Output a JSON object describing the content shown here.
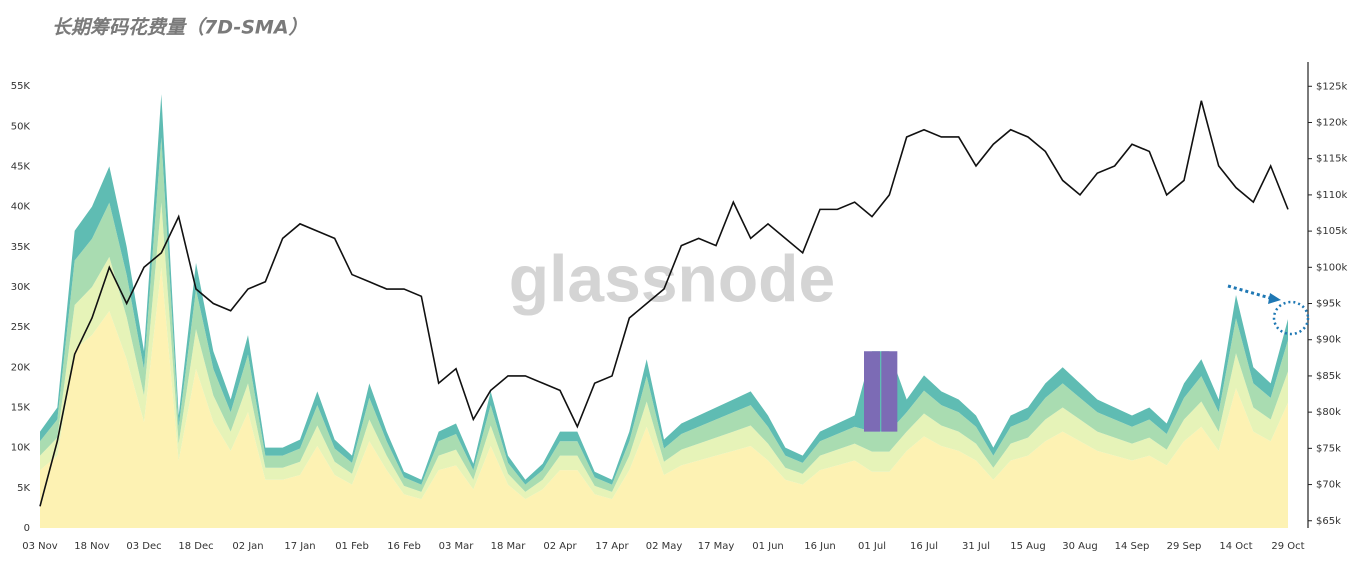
{
  "chart_data": {
    "type": "stacked_area_line",
    "title": "长期筹码花费量（7D-SMA）",
    "watermark": "glassnode",
    "categories": [
      "03 Nov",
      null,
      null,
      "18 Nov",
      null,
      null,
      "03 Dec",
      null,
      null,
      "18 Dec",
      null,
      null,
      "02 Jan",
      null,
      null,
      "17 Jan",
      null,
      null,
      "01 Feb",
      null,
      null,
      "16 Feb",
      null,
      null,
      "03 Mar",
      null,
      null,
      "18 Mar",
      null,
      null,
      "02 Apr",
      null,
      null,
      "17 Apr",
      null,
      null,
      "02 May",
      null,
      null,
      "17 May",
      null,
      null,
      "01 Jun",
      null,
      null,
      "16 Jun",
      null,
      null,
      "01 Jul",
      null,
      null,
      "16 Jul",
      null,
      null,
      "31 Jul",
      null,
      null,
      "15 Aug",
      null,
      null,
      "30 Aug",
      null,
      null,
      "14 Sep",
      null,
      null,
      "29 Sep",
      null,
      null,
      "14 Oct",
      null,
      null,
      "29 Oct"
    ],
    "series": [
      {
        "color": "#fdf2b3",
        "values": [
          7200,
          9000,
          22200,
          24000,
          27000,
          21000,
          13200,
          32400,
          8400,
          19800,
          13200,
          9600,
          14400,
          6000,
          6000,
          6600,
          10200,
          6600,
          5400,
          10800,
          7200,
          4200,
          3600,
          7200,
          7800,
          4800,
          10200,
          5400,
          3600,
          4800,
          7200,
          7200,
          4200,
          3600,
          7200,
          12600,
          6600,
          7800,
          8400,
          9000,
          9600,
          10200,
          8400,
          6000,
          5400,
          7200,
          7800,
          8400,
          7000,
          7000,
          9600,
          11400,
          10200,
          9600,
          8400,
          6000,
          8400,
          9000,
          10800,
          12000,
          10800,
          9600,
          9000,
          8400,
          9000,
          7800,
          10800,
          12600,
          9600,
          17400,
          12000,
          10800,
          15600
        ]
      },
      {
        "color": "#e6f3b8",
        "values": [
          1800,
          2250,
          5550,
          6000,
          6750,
          5250,
          3300,
          8100,
          2100,
          4950,
          3300,
          2400,
          3600,
          1500,
          1500,
          1650,
          2550,
          1650,
          1350,
          2700,
          1800,
          1050,
          900,
          1800,
          1950,
          1200,
          2550,
          1350,
          900,
          1200,
          1800,
          1800,
          1050,
          900,
          1800,
          3150,
          1650,
          1950,
          2100,
          2250,
          2400,
          2550,
          2100,
          1500,
          1350,
          1800,
          1950,
          2100,
          2500,
          2500,
          2400,
          2850,
          2550,
          2400,
          2100,
          1500,
          2100,
          2250,
          2700,
          3000,
          2700,
          2400,
          2250,
          2100,
          2250,
          1950,
          2700,
          3150,
          2400,
          4350,
          3000,
          2700,
          3900
        ]
      },
      {
        "color": "#a9dcb1",
        "values": [
          1800,
          2250,
          5550,
          6000,
          6750,
          5250,
          3300,
          8100,
          2100,
          4950,
          3300,
          2400,
          3600,
          1500,
          1500,
          1650,
          2550,
          1650,
          1350,
          2700,
          1800,
          1050,
          900,
          1800,
          1950,
          1200,
          2550,
          1350,
          900,
          1200,
          1800,
          1800,
          1050,
          900,
          1800,
          3150,
          1650,
          1950,
          2100,
          2250,
          2400,
          2550,
          2100,
          1500,
          1350,
          1800,
          1950,
          2100,
          2500,
          2500,
          2400,
          2850,
          2550,
          2400,
          2100,
          1500,
          2100,
          2250,
          2700,
          3000,
          2700,
          2400,
          2250,
          2100,
          2250,
          1950,
          2700,
          3150,
          2400,
          4350,
          3000,
          2700,
          3900
        ]
      },
      {
        "color": "#5fbcb3",
        "values": [
          1200,
          1500,
          3700,
          4000,
          4500,
          3500,
          2200,
          5400,
          1400,
          3300,
          2200,
          1600,
          2400,
          1000,
          1000,
          1100,
          1700,
          1100,
          900,
          1800,
          1200,
          700,
          600,
          1200,
          1300,
          800,
          1700,
          900,
          600,
          800,
          1200,
          1200,
          700,
          600,
          1200,
          2100,
          1100,
          1300,
          1400,
          1500,
          1600,
          1700,
          1400,
          1000,
          900,
          1200,
          1300,
          1400,
          10000,
          10000,
          1600,
          1900,
          1700,
          1600,
          1400,
          1000,
          1400,
          1500,
          1800,
          2000,
          1800,
          1600,
          1500,
          1400,
          1500,
          1300,
          1800,
          2100,
          1600,
          2900,
          2000,
          1800,
          2600
        ]
      },
      {
        "color": "#111111",
        "axis": "y2",
        "values": [
          67000,
          76000,
          88000,
          93000,
          100000,
          95000,
          100000,
          102000,
          107000,
          97000,
          95000,
          94000,
          97000,
          98000,
          104000,
          106000,
          105000,
          104000,
          99000,
          98000,
          97000,
          97000,
          96000,
          84000,
          86000,
          79000,
          83000,
          85000,
          85000,
          84000,
          83000,
          78000,
          84000,
          85000,
          93000,
          95000,
          97000,
          103000,
          104000,
          103000,
          109000,
          104000,
          106000,
          104000,
          102000,
          108000,
          108000,
          109000,
          107000,
          110000,
          118000,
          119000,
          118000,
          118000,
          114000,
          117000,
          119000,
          118000,
          116000,
          112000,
          110000,
          113000,
          114000,
          117000,
          116000,
          110000,
          112000,
          123000,
          114000,
          111000,
          109000,
          114000,
          108000
        ]
      }
    ],
    "spike_color": "#7c6bb5",
    "ylim": [
      0,
      57500
    ],
    "yticks": [
      0,
      {
        "value": 5000,
        "label": "5K"
      },
      {
        "value": 10000,
        "label": "10K"
      },
      {
        "value": 15000,
        "label": "15K"
      },
      {
        "value": 20000,
        "label": "20K"
      },
      {
        "value": 25000,
        "label": "25K"
      },
      {
        "value": 30000,
        "label": "30K"
      },
      {
        "value": 35000,
        "label": "35K"
      },
      {
        "value": 40000,
        "label": "40K"
      },
      {
        "value": 45000,
        "label": "45K"
      },
      {
        "value": 50000,
        "label": "50K"
      },
      {
        "value": 55000,
        "label": "55K"
      }
    ],
    "y2lim": [
      64000,
      127800
    ],
    "y2ticks": [
      {
        "value": 65000,
        "label": "$65k"
      },
      {
        "value": 70000,
        "label": "$70k"
      },
      {
        "value": 75000,
        "label": "$75k"
      },
      {
        "value": 80000,
        "label": "$80k"
      },
      {
        "value": 85000,
        "label": "$85k"
      },
      {
        "value": 90000,
        "label": "$90k"
      },
      {
        "value": 95000,
        "label": "$95k"
      },
      {
        "value": 100000,
        "label": "$100k"
      },
      {
        "value": 105000,
        "label": "$105k"
      },
      {
        "value": 110000,
        "label": "$110k"
      },
      {
        "value": 115000,
        "label": "$115k"
      },
      {
        "value": 120000,
        "label": "$120k"
      },
      {
        "value": 125000,
        "label": "$125k"
      }
    ]
  }
}
